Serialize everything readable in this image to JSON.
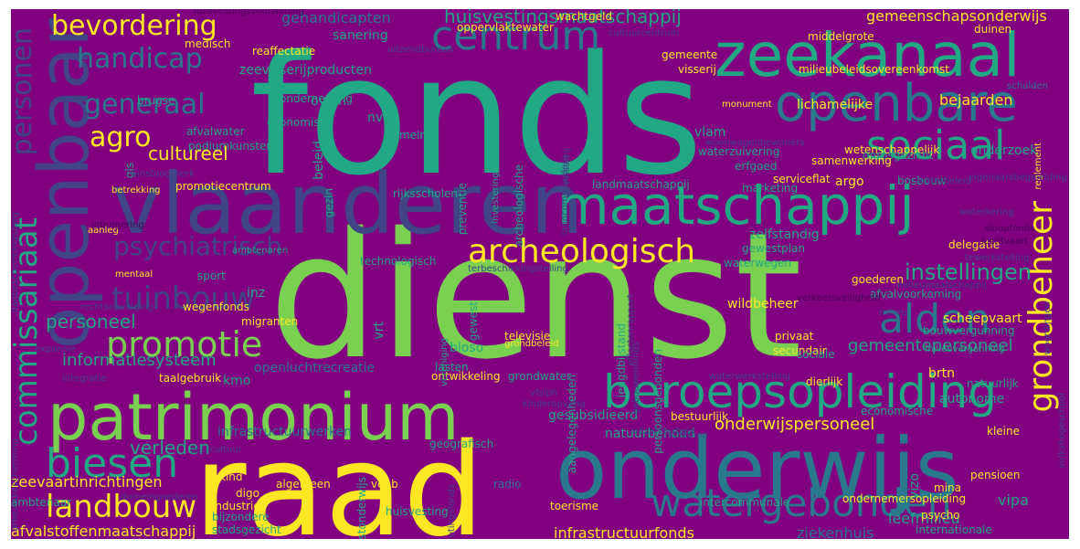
{
  "background": "#800080",
  "palette": {
    "purple": "#440154",
    "indigo": "#414487",
    "blue": "#2a788e",
    "teal": "#22a884",
    "green": "#7ad151",
    "yellow": "#fde725"
  },
  "words": [
    {
      "text": "fonds",
      "color": "teal"
    },
    {
      "text": "dienst",
      "color": "green"
    },
    {
      "text": "raad",
      "color": "yellow"
    },
    {
      "text": "onderwijs",
      "color": "blue"
    },
    {
      "text": "vlaanderen",
      "color": "indigo"
    },
    {
      "text": "openbaar",
      "color": "indigo"
    },
    {
      "text": "patrimonium",
      "color": "green"
    },
    {
      "text": "maatschappij",
      "color": "teal"
    },
    {
      "text": "zeekanaal",
      "color": "teal"
    },
    {
      "text": "openbare",
      "color": "blue"
    },
    {
      "text": "beroepsopleiding",
      "color": "teal"
    },
    {
      "text": "archeologisch",
      "color": "yellow"
    },
    {
      "text": "centrum",
      "color": "blue"
    },
    {
      "text": "sociaal",
      "color": "teal"
    },
    {
      "text": "watergebonden",
      "color": "blue"
    },
    {
      "text": "commissariaat",
      "color": "teal"
    },
    {
      "text": "grondbeheer",
      "color": "yellow"
    },
    {
      "text": "biesen",
      "color": "teal"
    },
    {
      "text": "alden",
      "color": "blue"
    },
    {
      "text": "promotie",
      "color": "green"
    },
    {
      "text": "landbouw",
      "color": "yellow"
    },
    {
      "text": "tuinbouw",
      "color": "indigo"
    },
    {
      "text": "psychiatrisch",
      "color": "indigo"
    },
    {
      "text": "personen",
      "color": "indigo"
    },
    {
      "text": "bevordering",
      "color": "yellow"
    },
    {
      "text": "handicap",
      "color": "blue"
    },
    {
      "text": "generaal",
      "color": "blue"
    },
    {
      "text": "agro",
      "color": "yellow"
    },
    {
      "text": "huisvestingsmaatschappij",
      "color": "teal"
    },
    {
      "text": "cultureel",
      "color": "yellow"
    },
    {
      "text": "instellingen",
      "color": "teal"
    },
    {
      "text": "bejaarden",
      "color": "yellow"
    },
    {
      "text": "gemeentepersoneel",
      "color": "teal"
    },
    {
      "text": "onderwijspersoneel",
      "color": "yellow"
    },
    {
      "text": "verleden",
      "color": "teal"
    },
    {
      "text": "personeel",
      "color": "teal"
    },
    {
      "text": "informatiesysteem",
      "color": "teal"
    },
    {
      "text": "zeevaartinrichtingen",
      "color": "yellow"
    },
    {
      "text": "afvalstoffenmaatschappij",
      "color": "yellow"
    },
    {
      "text": "infrastructuurfonds",
      "color": "yellow"
    },
    {
      "text": "ziekenhuis",
      "color": "blue"
    },
    {
      "text": "leefmilieu",
      "color": "teal"
    },
    {
      "text": "vipa",
      "color": "teal"
    },
    {
      "text": "scheepvaart",
      "color": "yellow"
    },
    {
      "text": "wildbeheer",
      "color": "yellow"
    },
    {
      "text": "lichamelijke",
      "color": "yellow"
    },
    {
      "text": "wetenschappelijk",
      "color": "yellow"
    },
    {
      "text": "onderzoek",
      "color": "teal"
    },
    {
      "text": "gemeenschapsonderwijs",
      "color": "yellow"
    },
    {
      "text": "zelfstandig",
      "color": "teal"
    },
    {
      "text": "technologisch",
      "color": "teal"
    },
    {
      "text": "ontwikkeling",
      "color": "yellow"
    },
    {
      "text": "gesubsidieerd",
      "color": "teal"
    },
    {
      "text": "natuurbehoud",
      "color": "teal"
    },
    {
      "text": "aangelegenheden",
      "color": "teal"
    },
    {
      "text": "persoonsgebonden",
      "color": "teal"
    },
    {
      "text": "brtn",
      "color": "yellow"
    },
    {
      "text": "autonome",
      "color": "teal"
    },
    {
      "text": "natuurlijk",
      "color": "teal"
    },
    {
      "text": "promotiecentrum",
      "color": "yellow"
    },
    {
      "text": "landmaatschappij",
      "color": "teal"
    },
    {
      "text": "bosbouw",
      "color": "teal"
    },
    {
      "text": "toerisme",
      "color": "yellow"
    },
    {
      "text": "industrie",
      "color": "yellow"
    },
    {
      "text": "kind",
      "color": "yellow"
    },
    {
      "text": "digo",
      "color": "yellow"
    },
    {
      "text": "vdab",
      "color": "yellow"
    },
    {
      "text": "vizo",
      "color": "teal"
    },
    {
      "text": "geografisch",
      "color": "teal"
    },
    {
      "text": "bloso",
      "color": "teal"
    },
    {
      "text": "vrt",
      "color": "teal"
    },
    {
      "text": "gewest",
      "color": "teal"
    },
    {
      "text": "beleid",
      "color": "teal"
    },
    {
      "text": "gezin",
      "color": "teal"
    },
    {
      "text": "rijksscholen",
      "color": "teal"
    },
    {
      "text": "nv",
      "color": "teal"
    },
    {
      "text": "ovam",
      "color": "teal"
    },
    {
      "text": "vlam",
      "color": "teal"
    },
    {
      "text": "erfgoed",
      "color": "teal"
    },
    {
      "text": "dorpsgezicht",
      "color": "teal"
    },
    {
      "text": "waterzuivering",
      "color": "teal"
    },
    {
      "text": "samenwerking",
      "color": "yellow"
    },
    {
      "text": "argo",
      "color": "yellow"
    },
    {
      "text": "serviceflat",
      "color": "yellow"
    },
    {
      "text": "monument",
      "color": "yellow"
    },
    {
      "text": "middelgrote",
      "color": "yellow"
    },
    {
      "text": "milieubeleidsovereenkomst",
      "color": "yellow"
    },
    {
      "text": "zeevisserijproducten",
      "color": "teal"
    },
    {
      "text": "gehandicapten",
      "color": "blue"
    },
    {
      "text": "sanering",
      "color": "teal"
    },
    {
      "text": "oppervlaktewater",
      "color": "yellow"
    },
    {
      "text": "wachtgeld",
      "color": "yellow"
    },
    {
      "text": "duinen",
      "color": "yellow"
    },
    {
      "text": "gemeente",
      "color": "yellow"
    },
    {
      "text": "visserij",
      "color": "yellow"
    },
    {
      "text": "reaffectatie",
      "color": "yellow"
    },
    {
      "text": "medisch",
      "color": "yellow"
    },
    {
      "text": "brugse",
      "color": "teal"
    },
    {
      "text": "economisch",
      "color": "teal"
    },
    {
      "text": "onderneming",
      "color": "teal"
    },
    {
      "text": "afvalwater",
      "color": "teal"
    },
    {
      "text": "podiumkunsten",
      "color": "teal"
    },
    {
      "text": "domein",
      "color": "teal"
    },
    {
      "text": "preventie",
      "color": "teal"
    },
    {
      "text": "marketing",
      "color": "teal"
    },
    {
      "text": "betrekking",
      "color": "yellow"
    },
    {
      "text": "aanleg",
      "color": "yellow"
    },
    {
      "text": "mentaal",
      "color": "yellow"
    },
    {
      "text": "sport",
      "color": "teal"
    },
    {
      "text": "ambtenaren",
      "color": "teal"
    },
    {
      "text": "migranten",
      "color": "yellow"
    },
    {
      "text": "wegenfonds",
      "color": "yellow"
    },
    {
      "text": "inz",
      "color": "teal"
    },
    {
      "text": "televisie",
      "color": "yellow"
    },
    {
      "text": "grondbeleid",
      "color": "yellow"
    },
    {
      "text": "jeugdbijstand",
      "color": "teal"
    },
    {
      "text": "gewestplan",
      "color": "teal"
    },
    {
      "text": "goederen",
      "color": "yellow"
    },
    {
      "text": "waterwegen",
      "color": "teal"
    },
    {
      "text": "afvalvoorkoming",
      "color": "teal"
    },
    {
      "text": "privaat",
      "color": "yellow"
    },
    {
      "text": "secundair",
      "color": "yellow"
    },
    {
      "text": "dierlijk",
      "color": "yellow"
    },
    {
      "text": "economische",
      "color": "teal"
    },
    {
      "text": "kleine",
      "color": "yellow"
    },
    {
      "text": "pensioen",
      "color": "yellow"
    },
    {
      "text": "mina",
      "color": "yellow"
    },
    {
      "text": "ondernemersopleiding",
      "color": "yellow"
    },
    {
      "text": "intercommunale",
      "color": "teal"
    },
    {
      "text": "psycho",
      "color": "yellow"
    },
    {
      "text": "internationale",
      "color": "teal"
    },
    {
      "text": "stadsgezicht",
      "color": "teal"
    },
    {
      "text": "bijzondere",
      "color": "teal"
    },
    {
      "text": "ambtenaar",
      "color": "teal"
    },
    {
      "text": "algemeen",
      "color": "yellow"
    },
    {
      "text": "taalgebruik",
      "color": "yellow"
    },
    {
      "text": "bestuurlijk",
      "color": "yellow"
    },
    {
      "text": "delegatie",
      "color": "yellow"
    },
    {
      "text": "huisvesting",
      "color": "teal"
    },
    {
      "text": "vereniging",
      "color": "teal"
    },
    {
      "text": "sociale",
      "color": "teal"
    },
    {
      "text": "grondwater",
      "color": "teal"
    },
    {
      "text": "lasten",
      "color": "teal"
    },
    {
      "text": "openluchtrecreatie",
      "color": "blue"
    },
    {
      "text": "infrastructuurwerken",
      "color": "blue"
    },
    {
      "text": "kunstonderwijs",
      "color": "teal"
    },
    {
      "text": "radio",
      "color": "blue"
    },
    {
      "text": "bouwvergunning",
      "color": "teal"
    },
    {
      "text": "milieuvergunning",
      "color": "teal"
    },
    {
      "text": "reglement",
      "color": "yellow"
    },
    {
      "text": "gis",
      "color": "teal"
    },
    {
      "text": "kmo",
      "color": "teal"
    },
    {
      "text": "schulden",
      "color": "blue"
    },
    {
      "text": "investeringsfonds",
      "color": "teal"
    },
    {
      "text": "archeologische",
      "color": "teal"
    },
    {
      "text": "expansie",
      "color": "indigo"
    },
    {
      "text": "integratie",
      "color": "indigo"
    },
    {
      "text": "rechtsopvolging",
      "color": "indigo"
    },
    {
      "text": "arbeidsbescherming",
      "color": "indigo"
    },
    {
      "text": "domeingoederen",
      "color": "indigo"
    },
    {
      "text": "aquicultuur",
      "color": "indigo"
    },
    {
      "text": "begrotingsfonds",
      "color": "indigo"
    },
    {
      "text": "kustduin",
      "color": "indigo"
    },
    {
      "text": "uitzendarbeid",
      "color": "indigo"
    },
    {
      "text": "uitzendbureau",
      "color": "indigo"
    },
    {
      "text": "cultuurcentrum",
      "color": "indigo"
    },
    {
      "text": "gebouwenfonds",
      "color": "indigo"
    },
    {
      "text": "effectenrapport",
      "color": "indigo"
    },
    {
      "text": "vfsiph",
      "color": "indigo"
    },
    {
      "text": "kinderopvang",
      "color": "indigo"
    },
    {
      "text": "landcommanderij",
      "color": "indigo"
    },
    {
      "text": "terbeschikkingstelling",
      "color": "indigo"
    },
    {
      "text": "milieumaatschappij",
      "color": "indigo"
    },
    {
      "text": "waterwerkstelling",
      "color": "indigo"
    },
    {
      "text": "volkshogeschool",
      "color": "indigo"
    },
    {
      "text": "woordingen",
      "color": "indigo"
    },
    {
      "text": "winstoogmerk",
      "color": "indigo"
    },
    {
      "text": "waterbeleid",
      "color": "indigo"
    },
    {
      "text": "milieu",
      "color": "indigo"
    },
    {
      "text": "dagbeschermingszorg",
      "color": "indigo"
    },
    {
      "text": "woonwagenbewoners",
      "color": "indigo"
    },
    {
      "text": "tewerkstelling",
      "color": "indigo"
    },
    {
      "text": "zeevisserij",
      "color": "indigo"
    },
    {
      "text": "waterkering",
      "color": "indigo"
    },
    {
      "text": "eigenaarsbegeleiding",
      "color": "indigo"
    },
    {
      "text": "huisvestingsvoorziening",
      "color": "purple"
    },
    {
      "text": "inburgering",
      "color": "purple"
    },
    {
      "text": "sloopfonds",
      "color": "purple"
    },
    {
      "text": "luchtvaart",
      "color": "purple"
    },
    {
      "text": "verkeersveiligheid",
      "color": "purple"
    }
  ]
}
